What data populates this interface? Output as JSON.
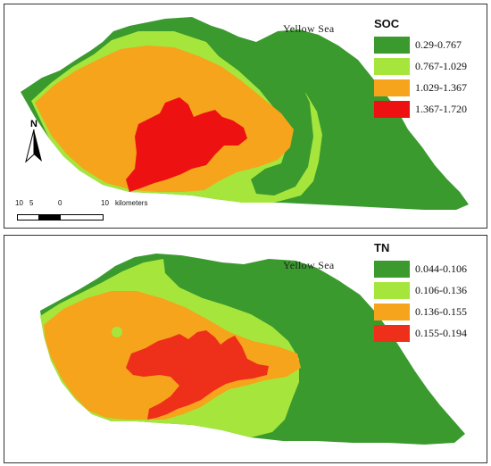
{
  "maps": {
    "soc": {
      "title": "SOC",
      "sea_label": "Yellow Sea",
      "legend": [
        {
          "label": "0.29-0.767",
          "color": "#3a9a2e"
        },
        {
          "label": "0.767-1.029",
          "color": "#a6e63c"
        },
        {
          "label": "1.029-1.367",
          "color": "#f5a41c"
        },
        {
          "label": "1.367-1.720",
          "color": "#ee1111"
        }
      ]
    },
    "tn": {
      "title": "TN",
      "sea_label": "Yellow Sea",
      "legend": [
        {
          "label": "0.044-0.106",
          "color": "#3a9a2e"
        },
        {
          "label": "0.106-0.136",
          "color": "#a6e63c"
        },
        {
          "label": "0.136-0.155",
          "color": "#f5a41c"
        },
        {
          "label": "0.155-0.194",
          "color": "#ee2f1a"
        }
      ]
    }
  },
  "north_arrow": {
    "label": "N"
  },
  "scale_bar": {
    "ticks": [
      "10",
      "5",
      "0",
      "10"
    ],
    "unit": "kilometers"
  }
}
